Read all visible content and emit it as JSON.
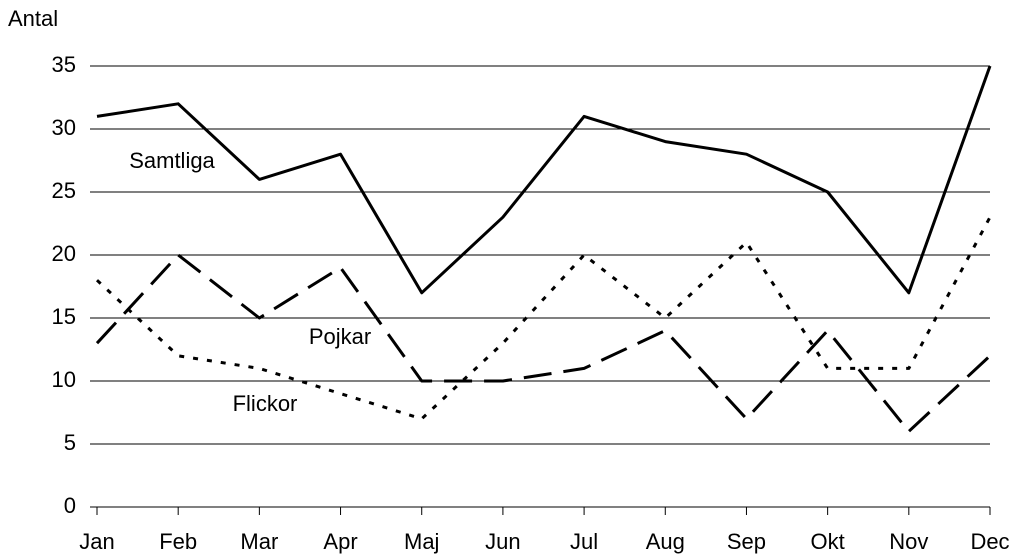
{
  "chart_data": {
    "type": "line",
    "ylabel": "Antal",
    "categories": [
      "Jan",
      "Feb",
      "Mar",
      "Apr",
      "Maj",
      "Jun",
      "Jul",
      "Aug",
      "Sep",
      "Okt",
      "Nov",
      "Dec"
    ],
    "series": [
      {
        "name": "Samtliga",
        "color": "#000000",
        "style": "solid",
        "values": [
          31,
          32,
          26,
          28,
          17,
          23,
          31,
          29,
          28,
          25,
          17,
          35
        ]
      },
      {
        "name": "Pojkar",
        "color": "#000000",
        "style": "dashed",
        "values": [
          13,
          20,
          15,
          19,
          10,
          10,
          11,
          14,
          7,
          14,
          6,
          12
        ]
      },
      {
        "name": "Flickor",
        "color": "#000000",
        "style": "dotted",
        "values": [
          18,
          12,
          11,
          9,
          7,
          13,
          20,
          15,
          21,
          11,
          11,
          23
        ]
      }
    ],
    "ylim": [
      0,
      35
    ],
    "yticks": [
      0,
      5,
      10,
      15,
      20,
      25,
      30,
      35
    ],
    "grid": true
  }
}
